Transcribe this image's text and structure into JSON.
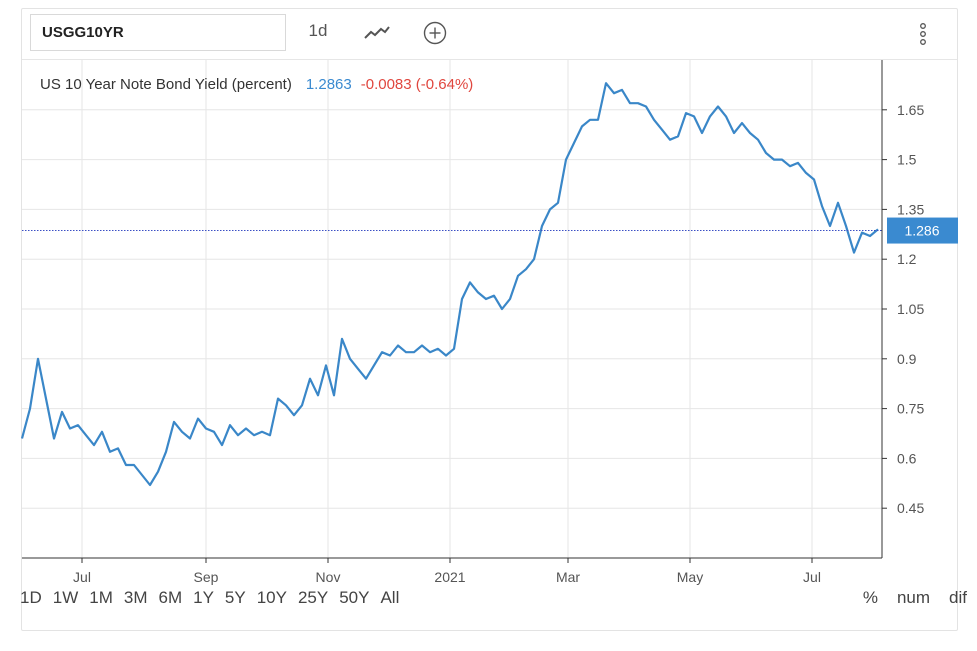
{
  "toolbar": {
    "symbol": "USGG10YR",
    "interval": "1d",
    "chart_type_icon": "line-chart-icon",
    "compare_icon": "plus-circle-icon",
    "more_icon": "vertical-dots-icon"
  },
  "legend": {
    "name": "US 10 Year Note Bond Yield (percent)",
    "price": "1.2863",
    "change": "-0.0083 (-0.64%)"
  },
  "price_label": "1.286",
  "ranges": [
    "1D",
    "1W",
    "1M",
    "3M",
    "6M",
    "1Y",
    "5Y",
    "10Y",
    "25Y",
    "50Y",
    "All"
  ],
  "modes": [
    "%",
    "num",
    "dif"
  ],
  "colors": {
    "line": "#3a87c8",
    "price_tag": "#3a8ad0",
    "change_negative": "#e0463e",
    "grid": "#e6e6e6"
  },
  "chart_data": {
    "type": "line",
    "title": "US 10 Year Note Bond Yield (percent)",
    "xlabel": "",
    "ylabel": "",
    "x_ticks": [
      "Jul",
      "Sep",
      "Nov",
      "2021",
      "Mar",
      "May",
      "Jul"
    ],
    "x_tick_dates": [
      "2020-07-01",
      "2020-09-01",
      "2020-11-01",
      "2021-01-01",
      "2021-03-01",
      "2021-05-01",
      "2021-07-01"
    ],
    "y_ticks": [
      0.45,
      0.6,
      0.75,
      0.9,
      1.05,
      1.2,
      1.35,
      1.5,
      1.65
    ],
    "ylim": [
      0.3,
      1.8
    ],
    "xlim": [
      "2020-06-01",
      "2021-08-05"
    ],
    "grid": true,
    "last_value": 1.2863,
    "series": [
      {
        "x": [
          "2020-06-01",
          "2020-06-05",
          "2020-06-09",
          "2020-06-13",
          "2020-06-17",
          "2020-06-21",
          "2020-06-25",
          "2020-06-29",
          "2020-07-03",
          "2020-07-07",
          "2020-07-11",
          "2020-07-15",
          "2020-07-19",
          "2020-07-23",
          "2020-07-27",
          "2020-07-31",
          "2020-08-04",
          "2020-08-08",
          "2020-08-12",
          "2020-08-16",
          "2020-08-20",
          "2020-08-24",
          "2020-08-28",
          "2020-09-01",
          "2020-09-05",
          "2020-09-09",
          "2020-09-13",
          "2020-09-17",
          "2020-09-21",
          "2020-09-25",
          "2020-09-29",
          "2020-10-03",
          "2020-10-07",
          "2020-10-11",
          "2020-10-15",
          "2020-10-19",
          "2020-10-23",
          "2020-10-27",
          "2020-10-31",
          "2020-11-04",
          "2020-11-08",
          "2020-11-12",
          "2020-11-16",
          "2020-11-20",
          "2020-11-24",
          "2020-11-28",
          "2020-12-02",
          "2020-12-06",
          "2020-12-10",
          "2020-12-14",
          "2020-12-18",
          "2020-12-22",
          "2020-12-26",
          "2020-12-30",
          "2021-01-03",
          "2021-01-07",
          "2021-01-11",
          "2021-01-15",
          "2021-01-19",
          "2021-01-23",
          "2021-01-27",
          "2021-01-31",
          "2021-02-04",
          "2021-02-08",
          "2021-02-12",
          "2021-02-16",
          "2021-02-20",
          "2021-02-24",
          "2021-02-28",
          "2021-03-04",
          "2021-03-08",
          "2021-03-12",
          "2021-03-16",
          "2021-03-20",
          "2021-03-24",
          "2021-03-28",
          "2021-04-01",
          "2021-04-05",
          "2021-04-09",
          "2021-04-13",
          "2021-04-17",
          "2021-04-21",
          "2021-04-25",
          "2021-04-29",
          "2021-05-03",
          "2021-05-07",
          "2021-05-11",
          "2021-05-15",
          "2021-05-19",
          "2021-05-23",
          "2021-05-27",
          "2021-05-31",
          "2021-06-04",
          "2021-06-08",
          "2021-06-12",
          "2021-06-16",
          "2021-06-20",
          "2021-06-24",
          "2021-06-28",
          "2021-07-02",
          "2021-07-06",
          "2021-07-10",
          "2021-07-14",
          "2021-07-18",
          "2021-07-22",
          "2021-07-26",
          "2021-07-30",
          "2021-08-03"
        ],
        "values": [
          0.66,
          0.75,
          0.9,
          0.78,
          0.66,
          0.74,
          0.69,
          0.7,
          0.67,
          0.64,
          0.68,
          0.62,
          0.63,
          0.58,
          0.58,
          0.55,
          0.52,
          0.56,
          0.62,
          0.71,
          0.68,
          0.66,
          0.72,
          0.69,
          0.68,
          0.64,
          0.7,
          0.67,
          0.69,
          0.67,
          0.68,
          0.67,
          0.78,
          0.76,
          0.73,
          0.76,
          0.84,
          0.79,
          0.88,
          0.79,
          0.96,
          0.9,
          0.87,
          0.84,
          0.88,
          0.92,
          0.91,
          0.94,
          0.92,
          0.92,
          0.94,
          0.92,
          0.93,
          0.91,
          0.93,
          1.08,
          1.13,
          1.1,
          1.08,
          1.09,
          1.05,
          1.08,
          1.15,
          1.17,
          1.2,
          1.3,
          1.35,
          1.37,
          1.5,
          1.55,
          1.6,
          1.62,
          1.62,
          1.73,
          1.7,
          1.71,
          1.67,
          1.67,
          1.66,
          1.62,
          1.59,
          1.56,
          1.57,
          1.64,
          1.63,
          1.58,
          1.63,
          1.66,
          1.63,
          1.58,
          1.61,
          1.58,
          1.56,
          1.52,
          1.5,
          1.5,
          1.48,
          1.49,
          1.46,
          1.44,
          1.36,
          1.3,
          1.37,
          1.3,
          1.22,
          1.28,
          1.27,
          1.29
        ]
      }
    ]
  }
}
